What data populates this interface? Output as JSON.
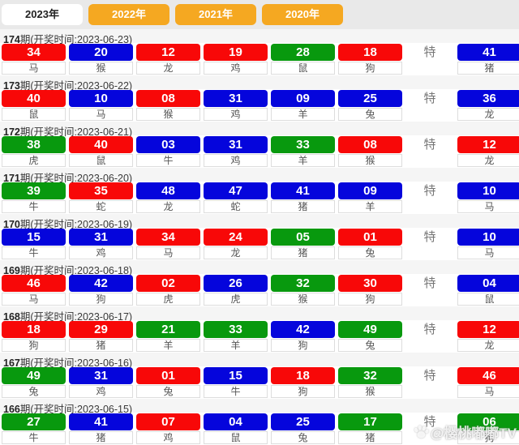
{
  "tabs": [
    {
      "label": "2023年",
      "active": true
    },
    {
      "label": "2022年",
      "active": false
    },
    {
      "label": "2021年",
      "active": false
    },
    {
      "label": "2020年",
      "active": false
    }
  ],
  "labels": {
    "special": "特"
  },
  "colors": {
    "red": "#f80808",
    "blue": "#0505dc",
    "green": "#08990e",
    "tab_active_bg": "#ffffff",
    "tab_active_text": "#222222",
    "tab_inactive_bg": "#f5a821",
    "tab_inactive_text": "#ffffff"
  },
  "rows": [
    {
      "period": "174",
      "info": "期(开奖时间:2023-06-23)",
      "numbers": [
        {
          "v": "34",
          "c": "red",
          "a": "马"
        },
        {
          "v": "20",
          "c": "blue",
          "a": "猴"
        },
        {
          "v": "12",
          "c": "red",
          "a": "龙"
        },
        {
          "v": "19",
          "c": "red",
          "a": "鸡"
        },
        {
          "v": "28",
          "c": "green",
          "a": "鼠"
        },
        {
          "v": "18",
          "c": "red",
          "a": "狗"
        }
      ],
      "special": {
        "v": "41",
        "c": "blue",
        "a": "猪"
      }
    },
    {
      "period": "173",
      "info": "期(开奖时间:2023-06-22)",
      "numbers": [
        {
          "v": "40",
          "c": "red",
          "a": "鼠"
        },
        {
          "v": "10",
          "c": "blue",
          "a": "马"
        },
        {
          "v": "08",
          "c": "red",
          "a": "猴"
        },
        {
          "v": "31",
          "c": "blue",
          "a": "鸡"
        },
        {
          "v": "09",
          "c": "blue",
          "a": "羊"
        },
        {
          "v": "25",
          "c": "blue",
          "a": "兔"
        }
      ],
      "special": {
        "v": "36",
        "c": "blue",
        "a": "龙"
      }
    },
    {
      "period": "172",
      "info": "期(开奖时间:2023-06-21)",
      "numbers": [
        {
          "v": "38",
          "c": "green",
          "a": "虎"
        },
        {
          "v": "40",
          "c": "red",
          "a": "鼠"
        },
        {
          "v": "03",
          "c": "blue",
          "a": "牛"
        },
        {
          "v": "31",
          "c": "blue",
          "a": "鸡"
        },
        {
          "v": "33",
          "c": "green",
          "a": "羊"
        },
        {
          "v": "08",
          "c": "red",
          "a": "猴"
        }
      ],
      "special": {
        "v": "12",
        "c": "red",
        "a": "龙"
      }
    },
    {
      "period": "171",
      "info": "期(开奖时间:2023-06-20)",
      "numbers": [
        {
          "v": "39",
          "c": "green",
          "a": "牛"
        },
        {
          "v": "35",
          "c": "red",
          "a": "蛇"
        },
        {
          "v": "48",
          "c": "blue",
          "a": "龙"
        },
        {
          "v": "47",
          "c": "blue",
          "a": "蛇"
        },
        {
          "v": "41",
          "c": "blue",
          "a": "猪"
        },
        {
          "v": "09",
          "c": "blue",
          "a": "羊"
        }
      ],
      "special": {
        "v": "10",
        "c": "blue",
        "a": "马"
      }
    },
    {
      "period": "170",
      "info": "期(开奖时间:2023-06-19)",
      "numbers": [
        {
          "v": "15",
          "c": "blue",
          "a": "牛"
        },
        {
          "v": "31",
          "c": "blue",
          "a": "鸡"
        },
        {
          "v": "34",
          "c": "red",
          "a": "马"
        },
        {
          "v": "24",
          "c": "red",
          "a": "龙"
        },
        {
          "v": "05",
          "c": "green",
          "a": "猪"
        },
        {
          "v": "01",
          "c": "red",
          "a": "兔"
        }
      ],
      "special": {
        "v": "10",
        "c": "blue",
        "a": "马"
      }
    },
    {
      "period": "169",
      "info": "期(开奖时间:2023-06-18)",
      "numbers": [
        {
          "v": "46",
          "c": "red",
          "a": "马"
        },
        {
          "v": "42",
          "c": "blue",
          "a": "狗"
        },
        {
          "v": "02",
          "c": "red",
          "a": "虎"
        },
        {
          "v": "26",
          "c": "blue",
          "a": "虎"
        },
        {
          "v": "32",
          "c": "green",
          "a": "猴"
        },
        {
          "v": "30",
          "c": "red",
          "a": "狗"
        }
      ],
      "special": {
        "v": "04",
        "c": "blue",
        "a": "鼠"
      }
    },
    {
      "period": "168",
      "info": "期(开奖时间:2023-06-17)",
      "numbers": [
        {
          "v": "18",
          "c": "red",
          "a": "狗"
        },
        {
          "v": "29",
          "c": "red",
          "a": "猪"
        },
        {
          "v": "21",
          "c": "green",
          "a": "羊"
        },
        {
          "v": "33",
          "c": "green",
          "a": "羊"
        },
        {
          "v": "42",
          "c": "blue",
          "a": "狗"
        },
        {
          "v": "49",
          "c": "green",
          "a": "兔"
        }
      ],
      "special": {
        "v": "12",
        "c": "red",
        "a": "龙"
      }
    },
    {
      "period": "167",
      "info": "期(开奖时间:2023-06-16)",
      "numbers": [
        {
          "v": "49",
          "c": "green",
          "a": "兔"
        },
        {
          "v": "31",
          "c": "blue",
          "a": "鸡"
        },
        {
          "v": "01",
          "c": "red",
          "a": "兔"
        },
        {
          "v": "15",
          "c": "blue",
          "a": "牛"
        },
        {
          "v": "18",
          "c": "red",
          "a": "狗"
        },
        {
          "v": "32",
          "c": "green",
          "a": "猴"
        }
      ],
      "special": {
        "v": "46",
        "c": "red",
        "a": "马"
      }
    },
    {
      "period": "166",
      "info": "期(开奖时间:2023-06-15)",
      "numbers": [
        {
          "v": "27",
          "c": "green",
          "a": "牛"
        },
        {
          "v": "41",
          "c": "blue",
          "a": "猪"
        },
        {
          "v": "07",
          "c": "red",
          "a": "鸡"
        },
        {
          "v": "04",
          "c": "blue",
          "a": "鼠"
        },
        {
          "v": "25",
          "c": "blue",
          "a": "兔"
        },
        {
          "v": "17",
          "c": "green",
          "a": "猪"
        }
      ],
      "special": {
        "v": "06",
        "c": "green",
        "a": "狗"
      }
    }
  ],
  "watermark": {
    "text": "@樱桃嘟嘟TV"
  }
}
